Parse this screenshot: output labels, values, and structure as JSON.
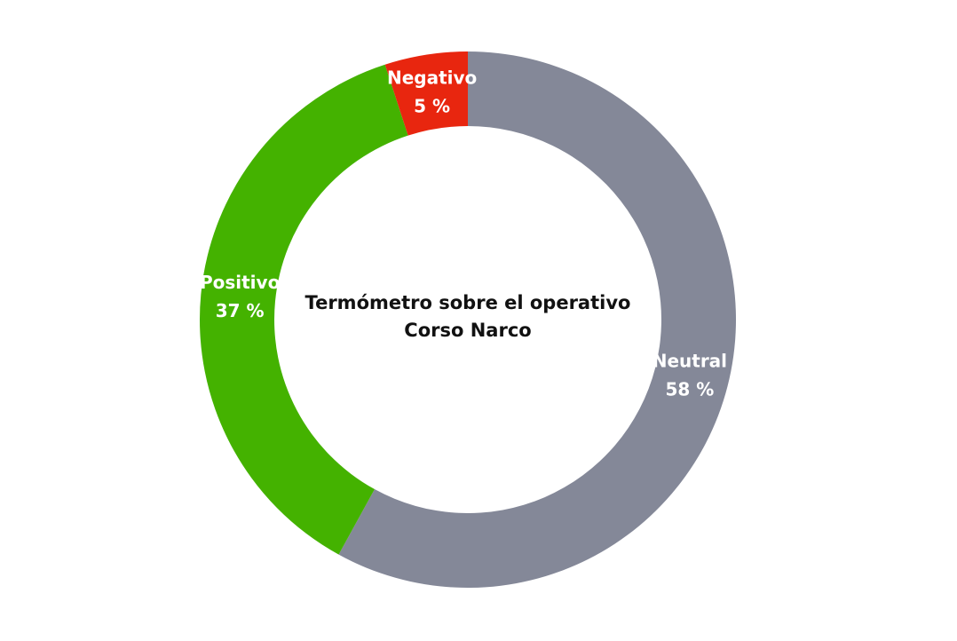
{
  "chart_data": {
    "type": "donut",
    "title": "Termómetro sobre el operativo Corso Narco",
    "categories": [
      "Neutral",
      "Positivo",
      "Negativo"
    ],
    "values": [
      58,
      37,
      5
    ],
    "value_labels": [
      "58 %",
      "37 %",
      "5 %"
    ],
    "colors": [
      "#848898",
      "#44b200",
      "#e8260f"
    ]
  }
}
